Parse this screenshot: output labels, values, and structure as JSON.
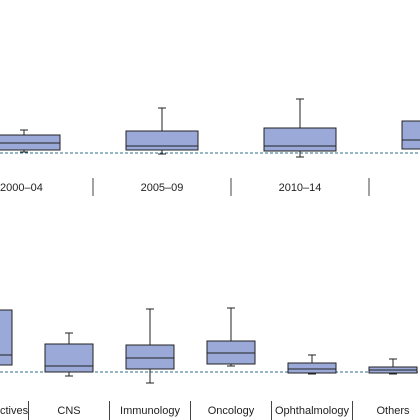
{
  "chart_data": [
    {
      "type": "box",
      "color": "#9ba9d9",
      "reference": 0,
      "reference_color": "#2f6f8f",
      "categories": [
        "2000–04",
        "2005–09",
        "2010–14",
        null
      ],
      "ylim": [
        -1.2,
        6.3
      ],
      "boxes": [
        {
          "low": 0.1,
          "q1": 0.3,
          "median": 1.0,
          "q3": 1.8,
          "high": 2.3
        },
        {
          "low": -0.1,
          "q1": 0.3,
          "median": 0.7,
          "q3": 2.2,
          "high": 4.5
        },
        {
          "low": -0.4,
          "q1": 0.2,
          "median": 0.7,
          "q3": 2.5,
          "high": 5.4
        },
        {
          "low": null,
          "q1": 0.4,
          "median": 1.3,
          "q3": 3.2,
          "high": null
        }
      ]
    },
    {
      "type": "box",
      "color": "#9ba9d9",
      "reference": 0,
      "reference_color": "#2f6f8f",
      "categories": [
        "ctives",
        "CNS",
        "Immunology",
        "Oncology",
        "Ophthalmology",
        "Others"
      ],
      "ylim": [
        -1.8,
        7.2
      ],
      "boxes": [
        {
          "low": null,
          "q1": 0.7,
          "median": 1.7,
          "q3": 6.2,
          "high": null
        },
        {
          "low": -0.4,
          "q1": 0.0,
          "median": 0.6,
          "q3": 2.8,
          "high": 3.9
        },
        {
          "low": -1.1,
          "q1": 0.3,
          "median": 1.4,
          "q3": 2.7,
          "high": 6.3
        },
        {
          "low": 0.6,
          "q1": 0.8,
          "median": 1.9,
          "q3": 3.1,
          "high": 6.4
        },
        {
          "low": -0.2,
          "q1": -0.1,
          "median": 0.3,
          "q3": 0.9,
          "high": 1.7
        },
        {
          "low": -0.2,
          "q1": -0.1,
          "median": 0.2,
          "q3": 0.5,
          "high": 1.3
        }
      ]
    }
  ]
}
